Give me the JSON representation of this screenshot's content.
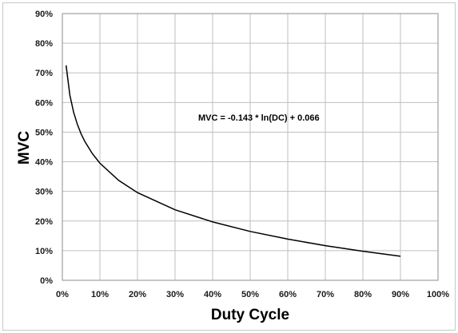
{
  "chart_data": {
    "type": "line",
    "title": "",
    "xlabel": "Duty Cycle",
    "ylabel": "MVC",
    "xlim": [
      0,
      1.0
    ],
    "ylim": [
      0,
      0.9
    ],
    "x_ticks": [
      "0%",
      "10%",
      "20%",
      "30%",
      "40%",
      "50%",
      "60%",
      "70%",
      "80%",
      "90%",
      "100%"
    ],
    "y_ticks": [
      "0%",
      "10%",
      "20%",
      "30%",
      "40%",
      "50%",
      "60%",
      "70%",
      "80%",
      "90%"
    ],
    "grid": true,
    "annotation": "MVC = -0.143 * ln(DC) + 0.066",
    "series": [
      {
        "color": "#000000",
        "x": [
          0.01,
          0.02,
          0.03,
          0.04,
          0.05,
          0.06,
          0.08,
          0.1,
          0.15,
          0.2,
          0.3,
          0.4,
          0.5,
          0.6,
          0.7,
          0.8,
          0.9
        ],
        "y": [
          0.725,
          0.625,
          0.567,
          0.526,
          0.494,
          0.468,
          0.427,
          0.395,
          0.337,
          0.296,
          0.238,
          0.197,
          0.165,
          0.139,
          0.117,
          0.098,
          0.081
        ]
      }
    ]
  }
}
